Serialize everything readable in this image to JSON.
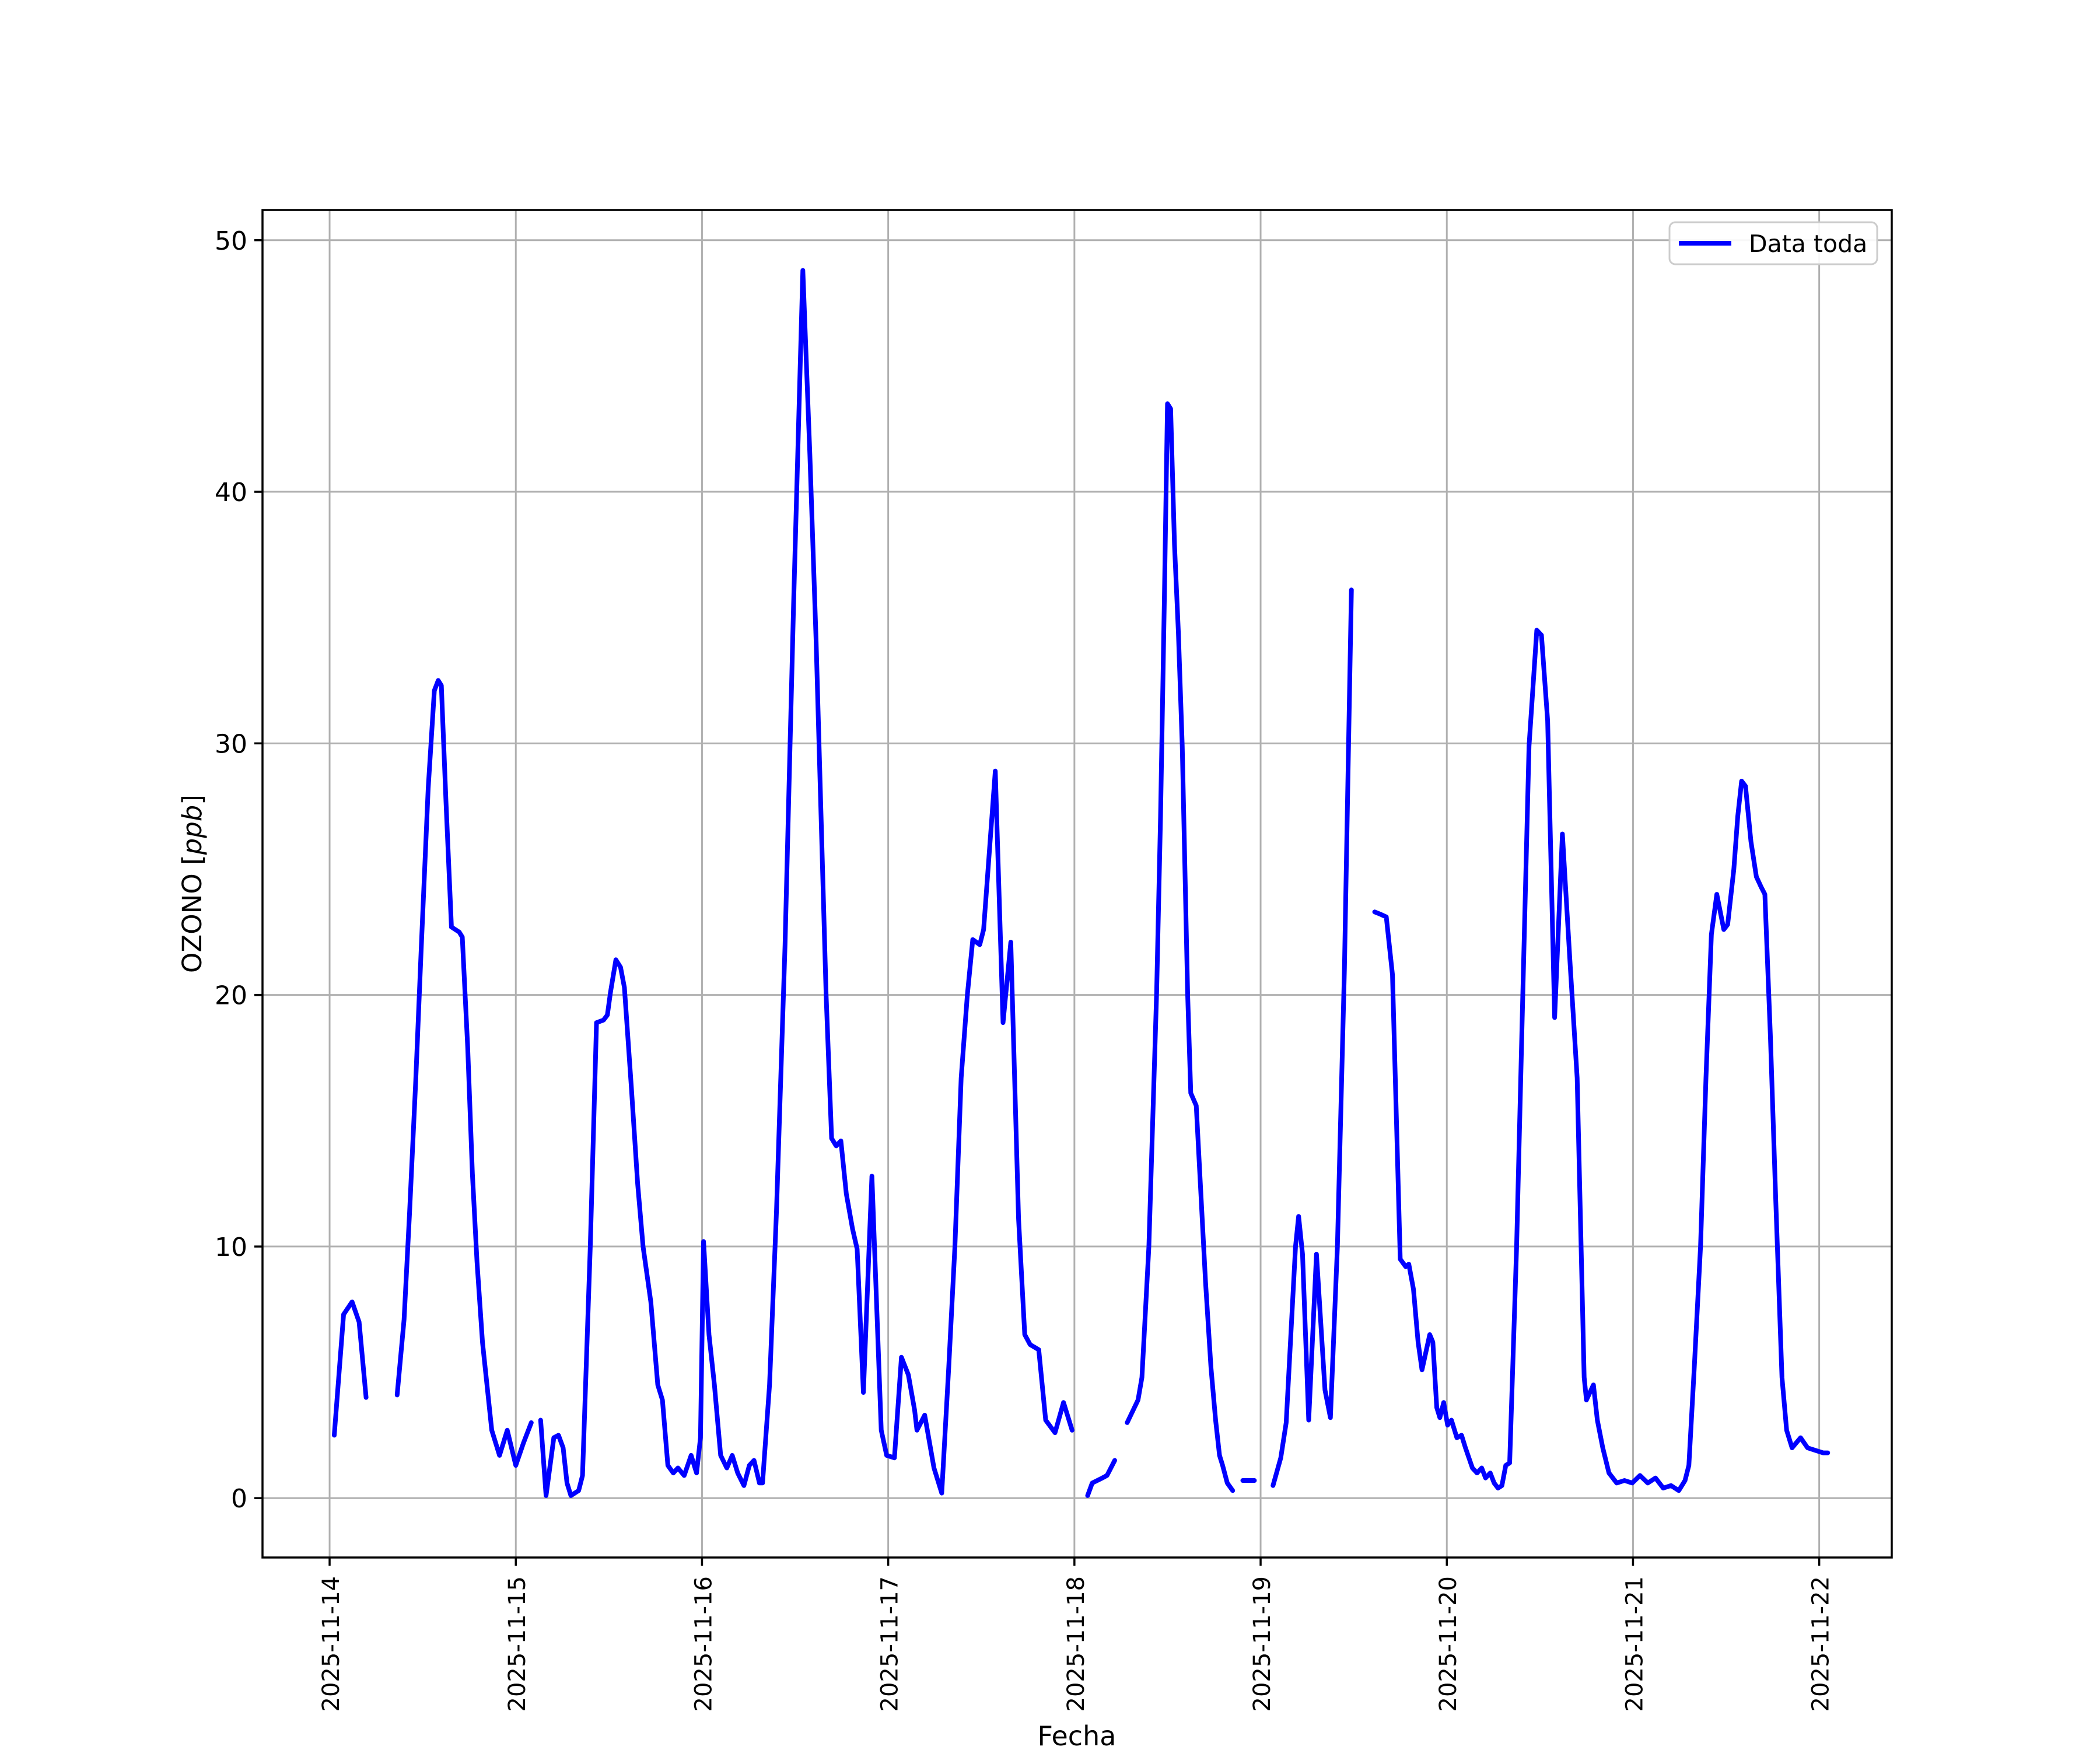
{
  "chart_data": {
    "type": "line",
    "title": "",
    "xlabel": "Fecha",
    "ylabel": "OZONO [ppb]",
    "ylabel_parts": {
      "prefix": "OZONO [",
      "math": "ppb",
      "suffix": "]"
    },
    "legend": {
      "position": "upper right",
      "entries": [
        {
          "label": "Data toda",
          "color": "#0000ff"
        }
      ]
    },
    "x_tick_labels": [
      "2025-11-14",
      "2025-11-15",
      "2025-11-16",
      "2025-11-17",
      "2025-11-18",
      "2025-11-19",
      "2025-11-20",
      "2025-11-21",
      "2025-11-22"
    ],
    "x_tick_hours": [
      0,
      24,
      48,
      72,
      96,
      120,
      144,
      168,
      192
    ],
    "y_ticks": [
      0,
      10,
      20,
      30,
      40,
      50
    ],
    "xlim_hours": [
      -8.65,
      201.35
    ],
    "ylim": [
      -2.36,
      51.2
    ],
    "grid": true,
    "x_unit": "hours since 2025-11-14 00:00",
    "series": [
      {
        "name": "Data toda",
        "color": "#0000ff",
        "segments": [
          [
            [
              0.6,
              2.5
            ],
            [
              1.8,
              7.3
            ],
            [
              2.9,
              7.8
            ],
            [
              3.8,
              7.0
            ],
            [
              4.7,
              4.0
            ]
          ],
          [
            [
              8.7,
              4.1
            ],
            [
              9.6,
              7.1
            ],
            [
              10.3,
              11.3
            ],
            [
              11.1,
              16.6
            ],
            [
              11.8,
              21.8
            ],
            [
              12.7,
              28.2
            ],
            [
              13.5,
              32.1
            ],
            [
              14.0,
              32.5
            ],
            [
              14.4,
              32.3
            ],
            [
              15.0,
              27.7
            ],
            [
              15.7,
              22.7
            ],
            [
              16.7,
              22.5
            ],
            [
              17.1,
              22.3
            ],
            [
              17.8,
              17.9
            ],
            [
              18.4,
              12.9
            ],
            [
              19.0,
              9.4
            ],
            [
              19.7,
              6.2
            ],
            [
              20.9,
              2.7
            ],
            [
              21.9,
              1.7
            ],
            [
              22.9,
              2.7
            ],
            [
              24.0,
              1.3
            ],
            [
              25.0,
              2.2
            ],
            [
              26.0,
              3.0
            ]
          ],
          [
            [
              27.2,
              3.1
            ],
            [
              27.9,
              0.1
            ],
            [
              28.9,
              2.4
            ],
            [
              29.5,
              2.5
            ],
            [
              30.1,
              2.0
            ],
            [
              30.6,
              0.6
            ],
            [
              31.1,
              0.1
            ],
            [
              32.1,
              0.3
            ],
            [
              32.6,
              0.9
            ],
            [
              33.6,
              10.0
            ],
            [
              34.4,
              18.9
            ],
            [
              35.3,
              19.0
            ],
            [
              35.8,
              19.2
            ],
            [
              36.2,
              20.1
            ],
            [
              36.9,
              21.4
            ],
            [
              37.5,
              21.1
            ],
            [
              38.0,
              20.3
            ],
            [
              38.9,
              16.3
            ],
            [
              39.7,
              12.5
            ],
            [
              40.4,
              10.0
            ],
            [
              41.4,
              7.8
            ],
            [
              42.3,
              4.5
            ],
            [
              42.9,
              3.9
            ],
            [
              43.6,
              1.3
            ],
            [
              44.3,
              1.0
            ],
            [
              44.9,
              1.2
            ],
            [
              45.7,
              0.9
            ],
            [
              46.6,
              1.7
            ],
            [
              47.3,
              1.0
            ],
            [
              47.8,
              2.4
            ],
            [
              48.2,
              10.2
            ],
            [
              48.9,
              6.5
            ],
            [
              49.6,
              4.5
            ],
            [
              50.4,
              1.7
            ],
            [
              51.2,
              1.2
            ],
            [
              51.9,
              1.7
            ],
            [
              52.6,
              1.0
            ],
            [
              53.4,
              0.5
            ],
            [
              54.1,
              1.3
            ],
            [
              54.7,
              1.5
            ],
            [
              55.4,
              0.6
            ],
            [
              55.8,
              0.6
            ],
            [
              56.7,
              4.5
            ],
            [
              57.6,
              11.4
            ],
            [
              58.7,
              22.0
            ],
            [
              59.8,
              35.5
            ],
            [
              61.0,
              48.8
            ],
            [
              61.9,
              41.5
            ],
            [
              62.7,
              34.1
            ],
            [
              64.0,
              20.0
            ],
            [
              64.7,
              14.3
            ],
            [
              65.3,
              14.0
            ],
            [
              65.9,
              14.2
            ],
            [
              66.6,
              12.1
            ],
            [
              67.4,
              10.7
            ],
            [
              68.0,
              9.9
            ],
            [
              68.8,
              4.2
            ],
            [
              69.9,
              12.8
            ],
            [
              71.1,
              2.7
            ],
            [
              71.8,
              1.7
            ],
            [
              72.8,
              1.6
            ],
            [
              73.7,
              5.6
            ],
            [
              74.6,
              4.9
            ],
            [
              75.4,
              3.5
            ],
            [
              75.7,
              2.7
            ],
            [
              76.7,
              3.3
            ],
            [
              77.9,
              1.2
            ],
            [
              78.9,
              0.2
            ],
            [
              79.8,
              5.2
            ],
            [
              80.6,
              10.0
            ],
            [
              81.4,
              16.7
            ],
            [
              82.2,
              20.0
            ],
            [
              82.9,
              22.2
            ],
            [
              83.8,
              22.0
            ],
            [
              84.3,
              22.6
            ],
            [
              85.8,
              28.9
            ],
            [
              86.8,
              18.9
            ],
            [
              87.8,
              22.1
            ],
            [
              88.8,
              11.1
            ],
            [
              89.6,
              6.5
            ],
            [
              90.3,
              6.1
            ],
            [
              91.4,
              5.9
            ],
            [
              92.3,
              3.1
            ],
            [
              93.5,
              2.6
            ],
            [
              94.6,
              3.8
            ],
            [
              95.7,
              2.7
            ]
          ],
          [
            [
              97.7,
              0.1
            ],
            [
              98.3,
              0.6
            ],
            [
              99.6,
              0.8
            ],
            [
              100.2,
              0.9
            ],
            [
              101.2,
              1.5
            ]
          ],
          [
            [
              102.8,
              3.0
            ],
            [
              104.2,
              3.9
            ],
            [
              104.7,
              4.8
            ],
            [
              105.6,
              10.0
            ],
            [
              106.6,
              20.1
            ],
            [
              107.1,
              27.1
            ],
            [
              107.6,
              35.8
            ],
            [
              108.0,
              43.5
            ],
            [
              108.4,
              43.3
            ],
            [
              108.9,
              37.9
            ],
            [
              109.4,
              34.4
            ],
            [
              109.9,
              29.9
            ],
            [
              110.6,
              20.0
            ],
            [
              111.0,
              16.1
            ],
            [
              111.7,
              15.6
            ],
            [
              112.9,
              8.6
            ],
            [
              113.6,
              5.2
            ],
            [
              114.2,
              3.1
            ],
            [
              114.7,
              1.7
            ],
            [
              115.1,
              1.3
            ],
            [
              115.7,
              0.6
            ],
            [
              116.4,
              0.3
            ]
          ],
          [
            [
              117.7,
              0.7
            ],
            [
              119.2,
              0.7
            ]
          ],
          [
            [
              121.6,
              0.5
            ],
            [
              122.6,
              1.6
            ],
            [
              123.3,
              3.0
            ],
            [
              124.5,
              10.0
            ],
            [
              124.9,
              11.2
            ],
            [
              125.4,
              9.7
            ],
            [
              126.2,
              3.1
            ],
            [
              127.2,
              9.7
            ],
            [
              128.3,
              4.3
            ],
            [
              129.0,
              3.2
            ],
            [
              129.9,
              10.0
            ],
            [
              130.8,
              21.0
            ],
            [
              131.7,
              36.1
            ]
          ],
          [
            [
              134.7,
              23.3
            ],
            [
              135.5,
              23.2
            ],
            [
              136.2,
              23.1
            ],
            [
              137.0,
              20.8
            ],
            [
              138.0,
              9.5
            ],
            [
              138.7,
              9.2
            ],
            [
              139.1,
              9.3
            ],
            [
              139.7,
              8.3
            ],
            [
              140.3,
              6.2
            ],
            [
              140.8,
              5.1
            ],
            [
              141.8,
              6.5
            ],
            [
              142.2,
              6.2
            ],
            [
              142.7,
              3.6
            ],
            [
              143.1,
              3.2
            ],
            [
              143.6,
              3.8
            ],
            [
              144.1,
              2.9
            ],
            [
              144.6,
              3.1
            ],
            [
              145.3,
              2.4
            ],
            [
              145.9,
              2.5
            ],
            [
              146.4,
              2.0
            ],
            [
              147.3,
              1.2
            ],
            [
              147.9,
              1.0
            ],
            [
              148.5,
              1.2
            ],
            [
              149.0,
              0.8
            ],
            [
              149.6,
              1.0
            ],
            [
              150.1,
              0.6
            ],
            [
              150.6,
              0.4
            ],
            [
              151.1,
              0.5
            ],
            [
              151.6,
              1.3
            ],
            [
              152.1,
              1.4
            ],
            [
              153.0,
              10.0
            ],
            [
              153.8,
              20.1
            ],
            [
              154.6,
              29.9
            ],
            [
              155.6,
              34.5
            ],
            [
              156.2,
              34.3
            ],
            [
              157.0,
              30.9
            ],
            [
              157.9,
              19.1
            ],
            [
              158.9,
              26.4
            ],
            [
              159.9,
              21.2
            ],
            [
              160.8,
              16.7
            ],
            [
              161.7,
              4.8
            ],
            [
              162.0,
              3.9
            ],
            [
              162.9,
              4.5
            ],
            [
              163.4,
              3.1
            ],
            [
              164.1,
              2.0
            ],
            [
              164.9,
              1.0
            ],
            [
              165.9,
              0.6
            ],
            [
              166.9,
              0.7
            ],
            [
              167.9,
              0.6
            ],
            [
              168.9,
              0.9
            ],
            [
              169.9,
              0.6
            ],
            [
              170.9,
              0.8
            ],
            [
              171.9,
              0.4
            ],
            [
              172.9,
              0.5
            ],
            [
              173.9,
              0.3
            ],
            [
              174.7,
              0.7
            ],
            [
              175.2,
              1.3
            ],
            [
              175.9,
              5.2
            ],
            [
              176.7,
              10.0
            ],
            [
              177.4,
              16.7
            ],
            [
              178.1,
              22.4
            ],
            [
              178.8,
              24.0
            ],
            [
              179.7,
              22.6
            ],
            [
              180.2,
              22.8
            ],
            [
              181.0,
              25.0
            ],
            [
              181.5,
              27.1
            ],
            [
              182.0,
              28.5
            ],
            [
              182.5,
              28.3
            ],
            [
              183.2,
              26.1
            ],
            [
              183.9,
              24.7
            ],
            [
              184.5,
              24.3
            ],
            [
              185.0,
              24.0
            ],
            [
              185.7,
              18.4
            ],
            [
              186.4,
              11.8
            ],
            [
              187.2,
              4.8
            ],
            [
              187.8,
              2.7
            ],
            [
              188.5,
              2.0
            ],
            [
              189.6,
              2.4
            ],
            [
              190.5,
              2.0
            ],
            [
              191.5,
              1.9
            ],
            [
              192.5,
              1.8
            ],
            [
              193.1,
              1.8
            ]
          ]
        ]
      }
    ]
  },
  "colors": {
    "line": "#0000ff",
    "grid": "#b0b0b0",
    "spine": "#000000",
    "legend_edge": "#cccccc",
    "background": "#ffffff"
  }
}
